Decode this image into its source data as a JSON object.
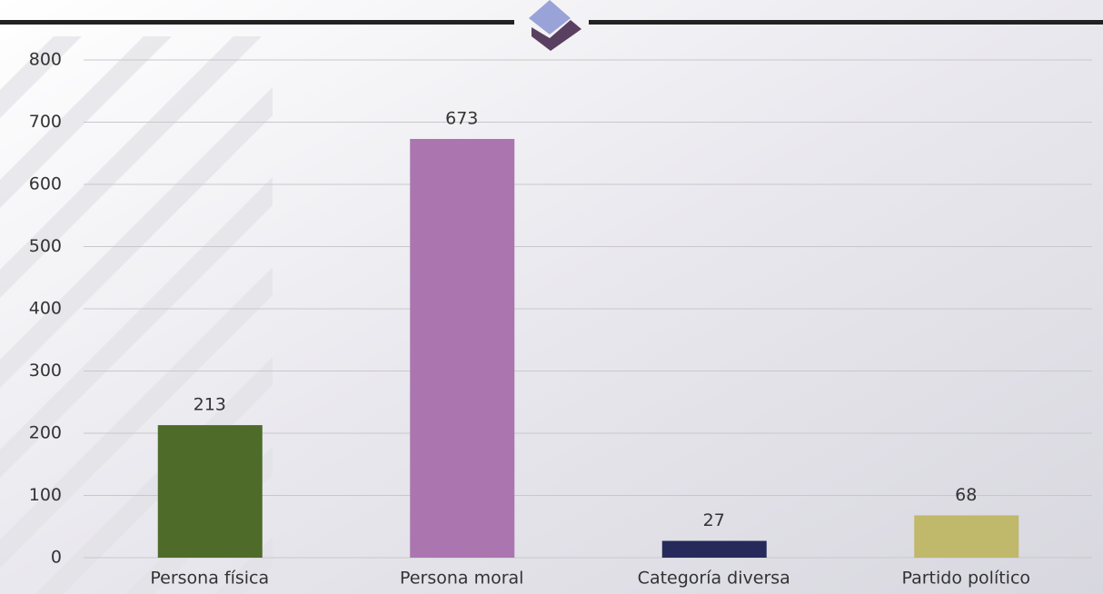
{
  "chart_data": {
    "type": "bar",
    "categories": [
      "Persona física",
      "Persona moral",
      "Categoría diversa",
      "Partido político"
    ],
    "values": [
      213,
      673,
      27,
      68
    ],
    "colors": [
      "#4e6b2a",
      "#ab76b0",
      "#262a5a",
      "#c0b86a"
    ],
    "ylim": [
      0,
      800
    ],
    "yticks": [
      0,
      100,
      200,
      300,
      400,
      500,
      600,
      700,
      800
    ],
    "grid": true
  }
}
